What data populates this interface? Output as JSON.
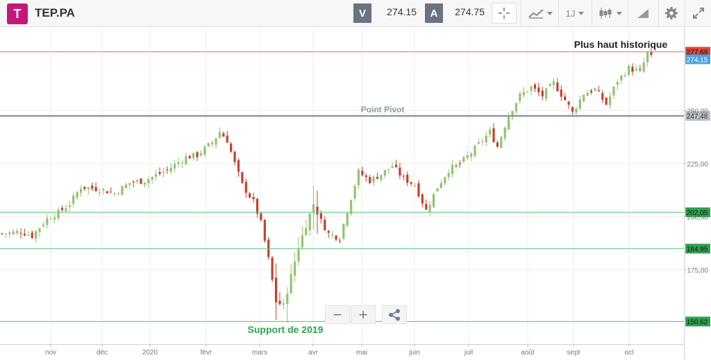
{
  "header": {
    "symbol": "TEP.PA",
    "sell_label": "V",
    "sell_price": "274.15",
    "buy_label": "A",
    "buy_price": "274.75",
    "interval_label": "1J",
    "logo_glyph": "T",
    "icons": [
      "crosshair-icon",
      "line-chart-icon",
      "candlestick-icon",
      "drawing-icon",
      "gear-icon",
      "fullscreen-icon"
    ]
  },
  "zoom": {
    "minus_glyph": "−",
    "plus_glyph": "+",
    "share_icon": "share-icon"
  },
  "colors": {
    "up": "#91c470",
    "down": "#c63f2f",
    "resistance": "#f0847d",
    "support": "#6ccf8a",
    "pivot": "#8f9aa0",
    "last": "#4ea3dc"
  },
  "chart_data": {
    "type": "candlestick",
    "ylim": [
      140,
      289
    ],
    "y_ticks": [
      "175,00",
      "200,00",
      "225,00",
      "250,00"
    ],
    "x_ticks": [
      "nov",
      "déc",
      "2020",
      "févr",
      "mars",
      "avr",
      "mai",
      "juin",
      "juil",
      "août",
      "sept",
      "oct"
    ],
    "levels": [
      {
        "value": 277.69,
        "label": "277,69",
        "kind": "resistance"
      },
      {
        "value": 247.48,
        "label": "247,48",
        "kind": "pivot"
      },
      {
        "value": 202.05,
        "label": "202,05",
        "kind": "support"
      },
      {
        "value": 184.95,
        "label": "184,95",
        "kind": "support"
      },
      {
        "value": 150.62,
        "label": "150,62",
        "kind": "support"
      }
    ],
    "last_price": {
      "value": 274.15,
      "label": "274,15"
    },
    "annotations": {
      "all_time_high": "Plus haut historique",
      "pivot": "Point Pivot",
      "support_2019": "Support de 2019"
    },
    "close_anchors": [
      [
        0,
        192
      ],
      [
        5,
        193
      ],
      [
        8,
        191
      ],
      [
        12,
        199
      ],
      [
        15,
        202
      ],
      [
        18,
        206
      ],
      [
        21,
        214
      ],
      [
        26,
        213
      ],
      [
        30,
        211
      ],
      [
        34,
        216
      ],
      [
        38,
        217
      ],
      [
        44,
        222
      ],
      [
        49,
        228
      ],
      [
        52,
        229
      ],
      [
        56,
        235
      ],
      [
        58,
        240
      ],
      [
        60,
        236
      ],
      [
        62,
        225
      ],
      [
        64,
        215
      ],
      [
        67,
        207
      ],
      [
        69,
        197
      ],
      [
        71,
        180
      ],
      [
        73,
        160
      ],
      [
        75,
        158
      ],
      [
        77,
        172
      ],
      [
        79,
        186
      ],
      [
        81,
        196
      ],
      [
        83,
        206
      ],
      [
        85,
        198
      ],
      [
        87,
        192
      ],
      [
        90,
        190
      ],
      [
        92,
        203
      ],
      [
        95,
        221
      ],
      [
        98,
        217
      ],
      [
        101,
        220
      ],
      [
        104,
        224
      ],
      [
        107,
        218
      ],
      [
        110,
        215
      ],
      [
        113,
        203
      ],
      [
        116,
        214
      ],
      [
        119,
        222
      ],
      [
        122,
        225
      ],
      [
        125,
        230
      ],
      [
        128,
        236
      ],
      [
        130,
        240
      ],
      [
        132,
        233
      ],
      [
        135,
        248
      ],
      [
        138,
        257
      ],
      [
        141,
        261
      ],
      [
        144,
        257
      ],
      [
        147,
        263
      ],
      [
        150,
        255
      ],
      [
        152,
        249
      ],
      [
        155,
        258
      ],
      [
        158,
        260
      ],
      [
        161,
        253
      ],
      [
        164,
        264
      ],
      [
        167,
        270
      ],
      [
        170,
        268
      ],
      [
        172,
        277
      ],
      [
        173,
        275
      ]
    ]
  }
}
